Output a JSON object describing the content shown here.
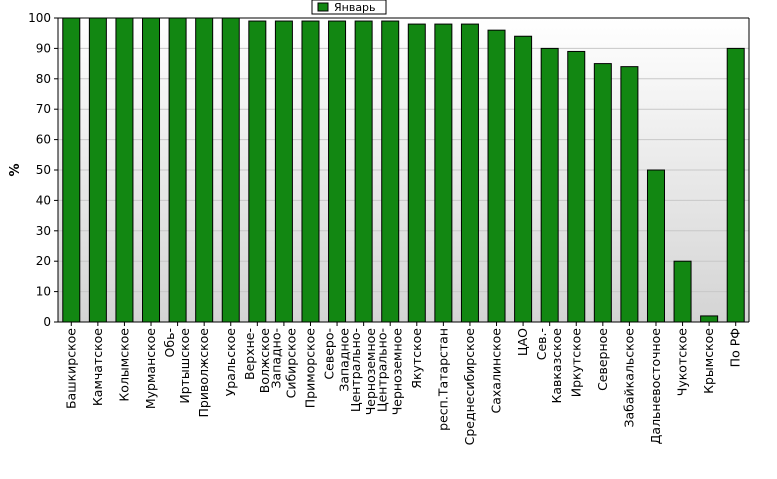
{
  "chart_data": {
    "type": "bar",
    "title": "",
    "xlabel": "",
    "ylabel": "%",
    "ylim": [
      0,
      100
    ],
    "yticks": [
      0,
      10,
      20,
      30,
      40,
      50,
      60,
      70,
      80,
      90,
      100
    ],
    "grid": true,
    "legend_position": "top-center",
    "colors": {
      "bar": "#128712",
      "bar_stroke": "#000000",
      "plot_bg_top": "#ffffff",
      "plot_bg_bottom": "#d4d4d4",
      "grid": "#c8c8c8"
    },
    "categories": [
      "Башкирское",
      "Камчатское",
      "Колымское",
      "Мурманское",
      "Обь-\nИртышское",
      "Приволжское",
      "Уральское",
      "Верхне-\nВолжское",
      "Западно-\nСибирское",
      "Приморское",
      "Северо-\nЗападное",
      "Центрально-\nЧерноземное",
      "Центрально-\nЧерноземное",
      "Якутское",
      "респ.Татарстан",
      "Среднесибирское",
      "Сахалинское",
      "ЦАО",
      "Сев.-\nКавказское",
      "Иркутское",
      "Северное",
      "Забайкальское",
      "Дальневосточное",
      "Чукотское",
      "Крымское",
      "По РФ"
    ],
    "series": [
      {
        "name": "Январь",
        "values": [
          100,
          100,
          100,
          100,
          100,
          100,
          100,
          99,
          99,
          99,
          99,
          99,
          99,
          98,
          98,
          98,
          96,
          94,
          90,
          89,
          85,
          84,
          50,
          20,
          2,
          90
        ]
      }
    ]
  }
}
